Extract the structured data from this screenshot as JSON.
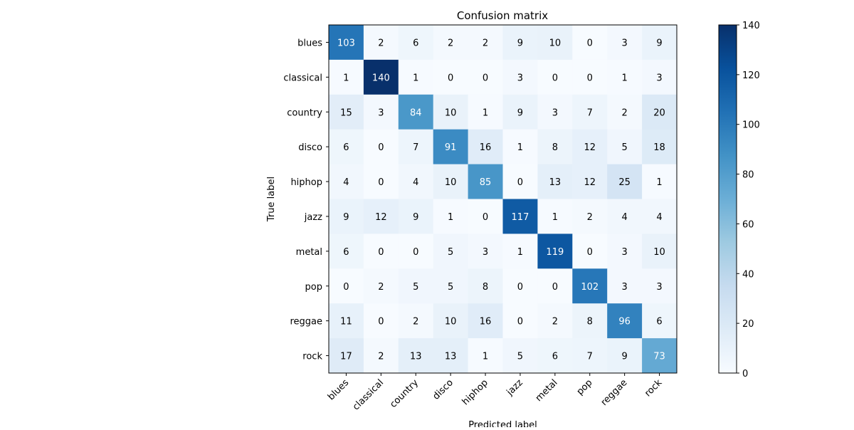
{
  "chart_data": {
    "type": "heatmap",
    "title": "Confusion matrix",
    "xlabel": "Predicted label",
    "ylabel": "True label",
    "x_categories": [
      "blues",
      "classical",
      "country",
      "disco",
      "hiphop",
      "jazz",
      "metal",
      "pop",
      "reggae",
      "rock"
    ],
    "y_categories": [
      "blues",
      "classical",
      "country",
      "disco",
      "hiphop",
      "jazz",
      "metal",
      "pop",
      "reggae",
      "rock"
    ],
    "values": [
      [
        103,
        2,
        6,
        2,
        2,
        9,
        10,
        0,
        3,
        9
      ],
      [
        1,
        140,
        1,
        0,
        0,
        3,
        0,
        0,
        1,
        3
      ],
      [
        15,
        3,
        84,
        10,
        1,
        9,
        3,
        7,
        2,
        20
      ],
      [
        6,
        0,
        7,
        91,
        16,
        1,
        8,
        12,
        5,
        18
      ],
      [
        4,
        0,
        4,
        10,
        85,
        0,
        13,
        12,
        25,
        1
      ],
      [
        9,
        12,
        9,
        1,
        0,
        117,
        1,
        2,
        4,
        4
      ],
      [
        6,
        0,
        0,
        5,
        3,
        1,
        119,
        0,
        3,
        10
      ],
      [
        0,
        2,
        5,
        5,
        8,
        0,
        0,
        102,
        3,
        3
      ],
      [
        11,
        0,
        2,
        10,
        16,
        0,
        2,
        8,
        96,
        6
      ],
      [
        17,
        2,
        13,
        13,
        1,
        5,
        6,
        7,
        9,
        73
      ]
    ],
    "colormap": "Blues",
    "vmin": 0,
    "vmax": 140,
    "colorbar_ticks": [
      0,
      20,
      40,
      60,
      80,
      100,
      120,
      140
    ],
    "x_tick_rotation_deg": 45,
    "grid": false
  }
}
